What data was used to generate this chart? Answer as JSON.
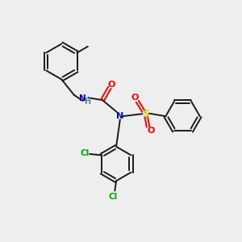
{
  "background_color": "#eeeeee",
  "bond_color": "#1a1a1a",
  "atom_colors": {
    "N": "#0000cc",
    "H": "#4a9090",
    "O": "#ff0000",
    "S": "#cccc00",
    "Cl": "#00aa00",
    "C": "#1a1a1a"
  },
  "figsize": [
    3.0,
    3.0
  ],
  "dpi": 100
}
